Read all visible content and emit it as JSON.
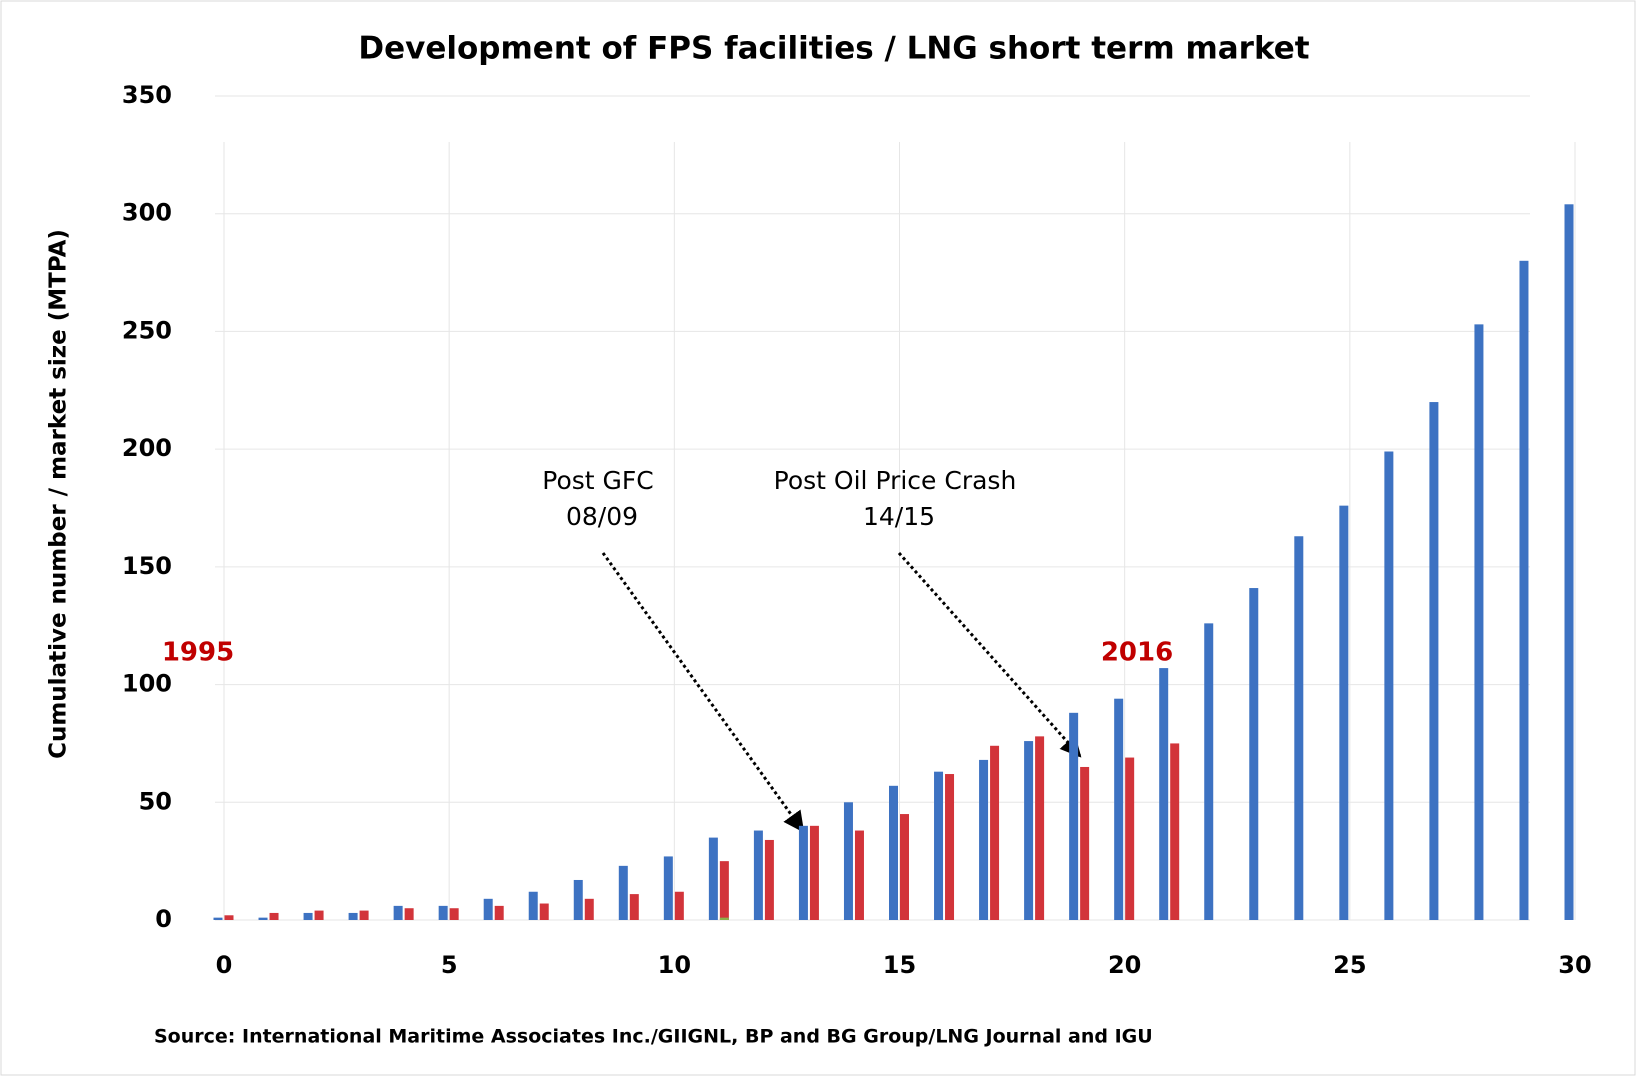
{
  "chart_data": {
    "type": "bar",
    "title": "Development of FPS facilities / LNG short term market",
    "y_label": "Cumulative number  / market size (MTPA)",
    "source": "Source: International Maritime Associates Inc./GIIGNL, BP and BG Group/LNG Journal and IGU",
    "x": [
      0,
      1,
      2,
      3,
      4,
      5,
      6,
      7,
      8,
      9,
      10,
      11,
      12,
      13,
      14,
      15,
      16,
      17,
      18,
      19,
      20,
      21,
      22,
      23,
      24,
      25,
      26,
      27,
      28,
      29,
      30
    ],
    "series": [
      {
        "color": "#3d72c2",
        "values": [
          1,
          1,
          3,
          3,
          6,
          6,
          9,
          12,
          17,
          23,
          27,
          35,
          38,
          40,
          50,
          57,
          63,
          68,
          76,
          88,
          94,
          107,
          126,
          141,
          163,
          176,
          199,
          220,
          253,
          280,
          304
        ]
      },
      {
        "color": "#d2343a",
        "values": [
          2,
          3,
          4,
          4,
          5,
          5,
          6,
          7,
          9,
          11,
          12,
          25,
          34,
          40,
          38,
          45,
          62,
          74,
          78,
          65,
          69,
          75,
          null,
          null,
          null,
          null,
          null,
          null,
          null,
          null,
          null
        ]
      },
      {
        "color": "#8bb04a",
        "values": [
          null,
          null,
          null,
          null,
          null,
          null,
          null,
          null,
          null,
          null,
          null,
          1,
          null,
          null,
          null,
          null,
          null,
          null,
          null,
          null,
          null,
          null,
          null,
          null,
          null,
          null,
          null,
          null,
          null,
          null,
          null
        ]
      }
    ],
    "xlim": [
      0,
      30
    ],
    "xticks": [
      0,
      5,
      10,
      15,
      20,
      25,
      30
    ],
    "ylim": [
      0,
      350
    ],
    "yticks": [
      0,
      50,
      100,
      150,
      200,
      250,
      300,
      350
    ],
    "grid": true,
    "year_labels": [
      {
        "text": "1995",
        "color": "#c00000"
      },
      {
        "text": "2016",
        "color": "#c00000"
      }
    ],
    "annotations": [
      {
        "lines": [
          "Post GFC",
          "08/09"
        ]
      },
      {
        "lines": [
          "Post Oil Price Crash",
          "14/15"
        ]
      }
    ]
  }
}
